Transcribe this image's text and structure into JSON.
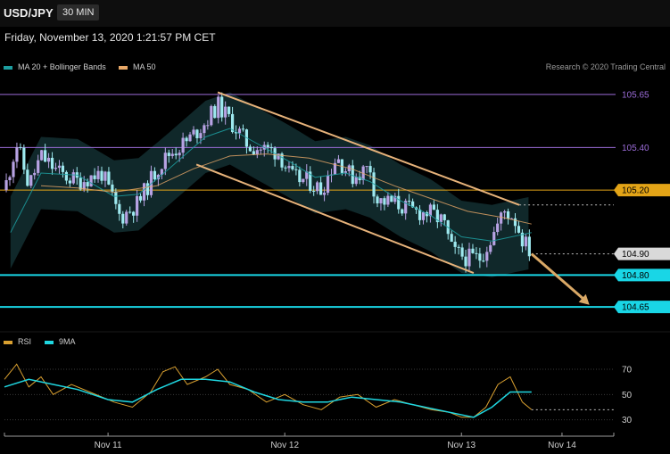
{
  "header": {
    "symbol": "USD/JPY",
    "timeframe": "30 MIN",
    "datetime": "Friday, November 13, 2020 1:21:57 PM CET"
  },
  "legend": {
    "bollinger": {
      "label": "MA 20 + Bollinger Bands",
      "color": "#1d9ea0"
    },
    "ma50": {
      "label": "MA 50",
      "color": "#e8a868"
    },
    "rsi": {
      "label": "RSI",
      "color": "#d9a030"
    },
    "rsi_ma": {
      "label": "9MA",
      "color": "#1fd6e0"
    }
  },
  "credit": "Research © 2020 Trading Central",
  "colors": {
    "bull_candle": "#b7a2e3",
    "bear_candle": "#9ee9ef",
    "channel": "#e6b27a",
    "resistance_top": "#9b6cd8",
    "pivot": "#e3a417",
    "support": "#19d6e6",
    "bands_fill": "#112a2c"
  },
  "chart_data": [
    {
      "type": "candlestick",
      "y_axis": {
        "range": [
          104.55,
          105.75
        ]
      },
      "x_ticks": [
        "Nov 11",
        "Nov 12",
        "Nov 13",
        "Nov 14"
      ],
      "levels": [
        {
          "label": "105.65",
          "value": 105.65,
          "style": "resistance_top"
        },
        {
          "label": "105.40",
          "value": 105.4,
          "style": "resistance_top"
        },
        {
          "label": "105.20",
          "value": 105.2,
          "style": "pivot"
        },
        {
          "label": "104.90",
          "value": 104.9,
          "style": "last_price"
        },
        {
          "label": "104.80",
          "value": 104.8,
          "style": "support"
        },
        {
          "label": "104.65",
          "value": 104.65,
          "style": "support"
        }
      ],
      "channel": {
        "upper": [
          {
            "t": 0.35,
            "v": 105.66
          },
          {
            "t": 0.845,
            "v": 105.13
          }
        ],
        "lower": [
          {
            "t": 0.315,
            "v": 105.32
          },
          {
            "t": 0.77,
            "v": 104.81
          }
        ]
      },
      "forecast_arrow": [
        {
          "t": 0.865,
          "v": 104.9
        },
        {
          "t": 0.96,
          "v": 104.66
        }
      ],
      "close_path": [
        {
          "t": 0.0,
          "v": 105.2
        },
        {
          "t": 0.02,
          "v": 105.42
        },
        {
          "t": 0.04,
          "v": 105.22
        },
        {
          "t": 0.06,
          "v": 105.36
        },
        {
          "t": 0.09,
          "v": 105.28
        },
        {
          "t": 0.12,
          "v": 105.24
        },
        {
          "t": 0.16,
          "v": 105.28
        },
        {
          "t": 0.19,
          "v": 105.07
        },
        {
          "t": 0.22,
          "v": 105.14
        },
        {
          "t": 0.25,
          "v": 105.3
        },
        {
          "t": 0.27,
          "v": 105.37
        },
        {
          "t": 0.3,
          "v": 105.43
        },
        {
          "t": 0.33,
          "v": 105.52
        },
        {
          "t": 0.35,
          "v": 105.6
        },
        {
          "t": 0.37,
          "v": 105.53
        },
        {
          "t": 0.4,
          "v": 105.41
        },
        {
          "t": 0.43,
          "v": 105.39
        },
        {
          "t": 0.45,
          "v": 105.38
        },
        {
          "t": 0.47,
          "v": 105.26
        },
        {
          "t": 0.5,
          "v": 105.24
        },
        {
          "t": 0.52,
          "v": 105.2
        },
        {
          "t": 0.545,
          "v": 105.36
        },
        {
          "t": 0.57,
          "v": 105.26
        },
        {
          "t": 0.6,
          "v": 105.31
        },
        {
          "t": 0.61,
          "v": 105.15
        },
        {
          "t": 0.64,
          "v": 105.14
        },
        {
          "t": 0.67,
          "v": 105.1
        },
        {
          "t": 0.7,
          "v": 105.09
        },
        {
          "t": 0.72,
          "v": 105.05
        },
        {
          "t": 0.735,
          "v": 104.91
        },
        {
          "t": 0.76,
          "v": 104.88
        },
        {
          "t": 0.78,
          "v": 104.88
        },
        {
          "t": 0.8,
          "v": 104.98
        },
        {
          "t": 0.82,
          "v": 105.1
        },
        {
          "t": 0.835,
          "v": 105.08
        },
        {
          "t": 0.85,
          "v": 104.97
        },
        {
          "t": 0.865,
          "v": 104.9
        }
      ],
      "ma20_path": [
        {
          "t": 0.01,
          "v": 105.0
        },
        {
          "t": 0.06,
          "v": 105.28
        },
        {
          "t": 0.12,
          "v": 105.27
        },
        {
          "t": 0.18,
          "v": 105.17
        },
        {
          "t": 0.22,
          "v": 105.18
        },
        {
          "t": 0.27,
          "v": 105.3
        },
        {
          "t": 0.33,
          "v": 105.45
        },
        {
          "t": 0.37,
          "v": 105.49
        },
        {
          "t": 0.42,
          "v": 105.41
        },
        {
          "t": 0.47,
          "v": 105.33
        },
        {
          "t": 0.51,
          "v": 105.26
        },
        {
          "t": 0.56,
          "v": 105.28
        },
        {
          "t": 0.6,
          "v": 105.24
        },
        {
          "t": 0.65,
          "v": 105.15
        },
        {
          "t": 0.7,
          "v": 105.08
        },
        {
          "t": 0.75,
          "v": 104.98
        },
        {
          "t": 0.8,
          "v": 104.96
        },
        {
          "t": 0.865,
          "v": 105.0
        }
      ],
      "ma50_path": [
        {
          "t": 0.06,
          "v": 105.22
        },
        {
          "t": 0.12,
          "v": 105.21
        },
        {
          "t": 0.18,
          "v": 105.19
        },
        {
          "t": 0.25,
          "v": 105.22
        },
        {
          "t": 0.31,
          "v": 105.3
        },
        {
          "t": 0.37,
          "v": 105.36
        },
        {
          "t": 0.43,
          "v": 105.37
        },
        {
          "t": 0.5,
          "v": 105.35
        },
        {
          "t": 0.57,
          "v": 105.3
        },
        {
          "t": 0.64,
          "v": 105.22
        },
        {
          "t": 0.7,
          "v": 105.16
        },
        {
          "t": 0.76,
          "v": 105.1
        },
        {
          "t": 0.82,
          "v": 105.07
        },
        {
          "t": 0.865,
          "v": 105.04
        }
      ],
      "band_width": 0.17
    },
    {
      "type": "line",
      "y_axis": {
        "range": [
          22,
          82
        ]
      },
      "y_ticks": [
        {
          "label": "70",
          "value": 70
        },
        {
          "label": "50",
          "value": 50
        },
        {
          "label": "30",
          "value": 30
        }
      ],
      "threshold": 38,
      "series": [
        {
          "name": "RSI",
          "values": [
            {
              "t": 0.0,
              "v": 62
            },
            {
              "t": 0.02,
              "v": 74
            },
            {
              "t": 0.04,
              "v": 56
            },
            {
              "t": 0.06,
              "v": 64
            },
            {
              "t": 0.08,
              "v": 50
            },
            {
              "t": 0.11,
              "v": 58
            },
            {
              "t": 0.14,
              "v": 52
            },
            {
              "t": 0.18,
              "v": 44
            },
            {
              "t": 0.21,
              "v": 40
            },
            {
              "t": 0.24,
              "v": 52
            },
            {
              "t": 0.26,
              "v": 68
            },
            {
              "t": 0.28,
              "v": 72
            },
            {
              "t": 0.3,
              "v": 58
            },
            {
              "t": 0.33,
              "v": 64
            },
            {
              "t": 0.35,
              "v": 70
            },
            {
              "t": 0.37,
              "v": 58
            },
            {
              "t": 0.4,
              "v": 54
            },
            {
              "t": 0.43,
              "v": 44
            },
            {
              "t": 0.46,
              "v": 50
            },
            {
              "t": 0.49,
              "v": 42
            },
            {
              "t": 0.52,
              "v": 38
            },
            {
              "t": 0.55,
              "v": 48
            },
            {
              "t": 0.58,
              "v": 50
            },
            {
              "t": 0.61,
              "v": 40
            },
            {
              "t": 0.64,
              "v": 46
            },
            {
              "t": 0.67,
              "v": 42
            },
            {
              "t": 0.7,
              "v": 38
            },
            {
              "t": 0.73,
              "v": 36
            },
            {
              "t": 0.75,
              "v": 32
            },
            {
              "t": 0.77,
              "v": 32
            },
            {
              "t": 0.79,
              "v": 40
            },
            {
              "t": 0.81,
              "v": 58
            },
            {
              "t": 0.83,
              "v": 64
            },
            {
              "t": 0.85,
              "v": 44
            },
            {
              "t": 0.865,
              "v": 38
            }
          ]
        },
        {
          "name": "9MA",
          "values": [
            {
              "t": 0.0,
              "v": 56
            },
            {
              "t": 0.04,
              "v": 62
            },
            {
              "t": 0.08,
              "v": 58
            },
            {
              "t": 0.12,
              "v": 54
            },
            {
              "t": 0.17,
              "v": 46
            },
            {
              "t": 0.21,
              "v": 44
            },
            {
              "t": 0.25,
              "v": 54
            },
            {
              "t": 0.29,
              "v": 62
            },
            {
              "t": 0.33,
              "v": 62
            },
            {
              "t": 0.37,
              "v": 60
            },
            {
              "t": 0.41,
              "v": 52
            },
            {
              "t": 0.45,
              "v": 46
            },
            {
              "t": 0.49,
              "v": 44
            },
            {
              "t": 0.53,
              "v": 44
            },
            {
              "t": 0.57,
              "v": 48
            },
            {
              "t": 0.61,
              "v": 46
            },
            {
              "t": 0.65,
              "v": 44
            },
            {
              "t": 0.69,
              "v": 40
            },
            {
              "t": 0.73,
              "v": 36
            },
            {
              "t": 0.77,
              "v": 32
            },
            {
              "t": 0.8,
              "v": 40
            },
            {
              "t": 0.83,
              "v": 52
            },
            {
              "t": 0.865,
              "v": 52
            }
          ]
        }
      ]
    }
  ]
}
